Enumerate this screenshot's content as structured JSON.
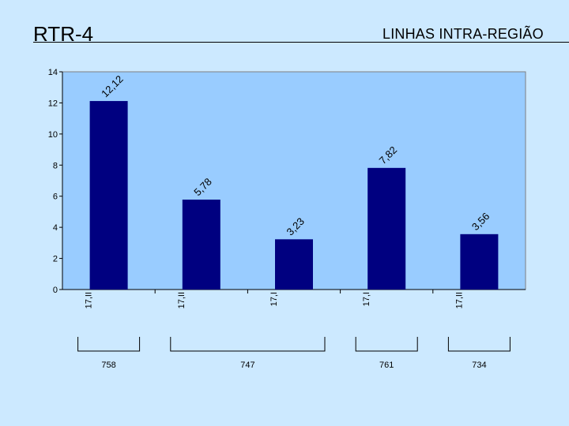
{
  "header": {
    "title": "RTR-4",
    "subtitle": "LINHAS INTRA-REGIÃO"
  },
  "chart_data": {
    "type": "bar",
    "categories": [
      "17,II",
      "17,II",
      "17,I",
      "17,I",
      "17,II"
    ],
    "values": [
      12.12,
      5.78,
      3.23,
      7.82,
      3.56
    ],
    "value_labels": [
      "12,12",
      "5,78",
      "3,23",
      "7,82",
      "3,56"
    ],
    "groups": [
      {
        "label": "758",
        "bars": [
          0
        ]
      },
      {
        "label": "747",
        "bars": [
          1,
          2
        ]
      },
      {
        "label": "761",
        "bars": [
          3
        ]
      },
      {
        "label": "734",
        "bars": [
          4
        ]
      }
    ],
    "ylim": [
      0,
      14
    ],
    "yticks": [
      0,
      2,
      4,
      6,
      8,
      10,
      12,
      14
    ],
    "plot_background": "#99ccff",
    "bar_color": "#000080",
    "grid": false,
    "legend": "none"
  }
}
